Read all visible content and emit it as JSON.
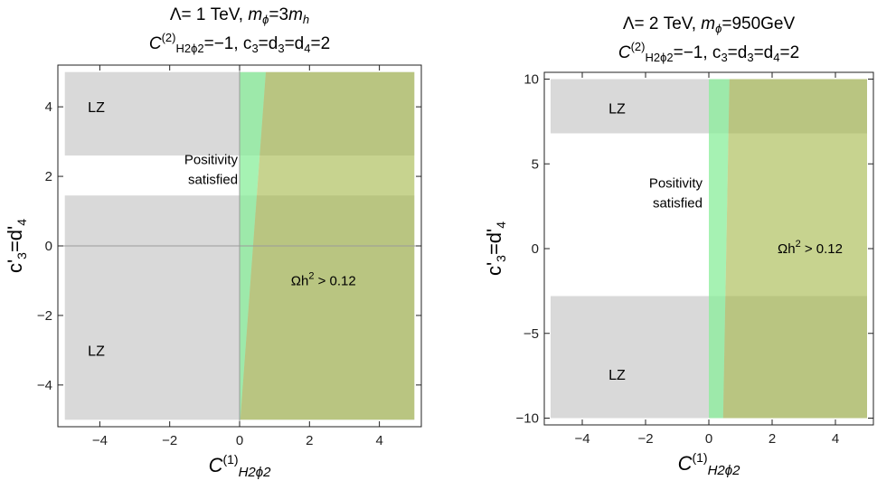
{
  "chart_data": [
    {
      "type": "area",
      "title_line1": {
        "pre": "Λ= 1 TeV, ",
        "m": "m",
        "msub": "ϕ",
        "mid": "=3",
        "m2": "m",
        "m2sub": "h"
      },
      "title_line2": {
        "C": "C",
        "sup": "(2)",
        "sub": "H2ϕ2",
        "rest": "=−1, c",
        "c3sub": "3",
        "eq": "=d",
        "d3sub": "3",
        "eq2": "=d",
        "d4sub": "4",
        "tail": "=2"
      },
      "xlabel": {
        "C": "C",
        "sup": "(1)",
        "sub": "H2ϕ2"
      },
      "ylabel": {
        "c": "c'",
        "sub1": "3",
        "eq": "=d'",
        "sub2": "4"
      },
      "xlim": [
        -5.2,
        5.2
      ],
      "ylim": [
        -5.2,
        5.2
      ],
      "xticks": [
        -4,
        -2,
        0,
        2,
        4
      ],
      "xtick_labels": [
        "−4",
        "−2",
        "0",
        "2",
        "4"
      ],
      "yticks": [
        -4,
        -2,
        0,
        2,
        4
      ],
      "ytick_labels": [
        "−4",
        "−2",
        "0",
        "2",
        "4"
      ],
      "zero_axes": true,
      "regions": [
        {
          "name": "LZ",
          "kind": "gray",
          "x": [
            -5,
            5
          ],
          "y": [
            2.6,
            5
          ],
          "label": "LZ",
          "label_at": [
            -4.1,
            4
          ]
        },
        {
          "name": "LZ",
          "kind": "gray",
          "x": [
            -5,
            5
          ],
          "y": [
            -5,
            1.45
          ],
          "label": "LZ",
          "label_at": [
            -4.1,
            -3
          ]
        },
        {
          "name": "Positivity satisfied",
          "kind": "green",
          "polygon": [
            [
              0,
              -5
            ],
            [
              0,
              5
            ],
            [
              0.75,
              5
            ],
            [
              0.02,
              -5
            ]
          ]
        },
        {
          "name": "relic",
          "kind": "olive",
          "polygon": [
            [
              0.02,
              -5
            ],
            [
              0.75,
              5
            ],
            [
              5,
              5
            ],
            [
              5,
              -5
            ]
          ]
        }
      ],
      "annotations": [
        {
          "lines": [
            "Positivity",
            "satisfied"
          ],
          "at": [
            -0.05,
            2.25
          ],
          "anchor": "end"
        },
        {
          "text": "Ωh",
          "sup": "2",
          "tail": " > 0.12",
          "at": [
            2.4,
            -1
          ]
        }
      ]
    },
    {
      "type": "area",
      "title_line1": {
        "pre": "Λ= 2 TeV, ",
        "m": "m",
        "msub": "ϕ",
        "mid": "=950GeV",
        "m2": "",
        "m2sub": ""
      },
      "title_line2": {
        "C": "C",
        "sup": "(2)",
        "sub": "H2ϕ2",
        "rest": "=−1, c",
        "c3sub": "3",
        "eq": "=d",
        "d3sub": "3",
        "eq2": "=d",
        "d4sub": "4",
        "tail": "=2"
      },
      "xlabel": {
        "C": "C",
        "sup": "(1)",
        "sub": "H2ϕ2"
      },
      "ylabel": {
        "c": "c'",
        "sub1": "3",
        "eq": "=d'",
        "sub2": "4"
      },
      "xlim": [
        -5.2,
        5.2
      ],
      "ylim": [
        -10.4,
        10.4
      ],
      "xticks": [
        -4,
        -2,
        0,
        2,
        4
      ],
      "xtick_labels": [
        "−4",
        "−2",
        "0",
        "2",
        "4"
      ],
      "yticks": [
        -10,
        -5,
        0,
        5,
        10
      ],
      "ytick_labels": [
        "−10",
        "−5",
        "0",
        "5",
        "10"
      ],
      "zero_axes": false,
      "regions": [
        {
          "name": "LZ",
          "kind": "gray",
          "x": [
            -5,
            5
          ],
          "y": [
            6.8,
            10
          ],
          "label": "LZ",
          "label_at": [
            -2.9,
            8.3
          ]
        },
        {
          "name": "LZ",
          "kind": "gray",
          "x": [
            -5,
            5
          ],
          "y": [
            -10,
            -2.8
          ],
          "label": "LZ",
          "label_at": [
            -2.9,
            -7.4
          ]
        },
        {
          "name": "Positivity satisfied",
          "kind": "green",
          "polygon": [
            [
              0,
              -10
            ],
            [
              0,
              10
            ],
            [
              0.65,
              10
            ],
            [
              0.45,
              -10
            ]
          ]
        },
        {
          "name": "relic",
          "kind": "olive",
          "polygon": [
            [
              0.45,
              -10
            ],
            [
              0.65,
              10
            ],
            [
              5,
              10
            ],
            [
              5,
              -10
            ]
          ]
        }
      ],
      "annotations": [
        {
          "lines": [
            "Positivity",
            "satisfied"
          ],
          "at": [
            -0.2,
            3.4
          ],
          "anchor": "end"
        },
        {
          "text": "Ωh",
          "sup": "2",
          "tail": " > 0.12",
          "at": [
            3.2,
            0
          ]
        }
      ]
    }
  ],
  "colors": {
    "gray": "#d9d9d9",
    "green": "#88ee99",
    "olive": "#a4b84a",
    "frame": "#222222",
    "zero_axis": "#9a9a9a"
  }
}
